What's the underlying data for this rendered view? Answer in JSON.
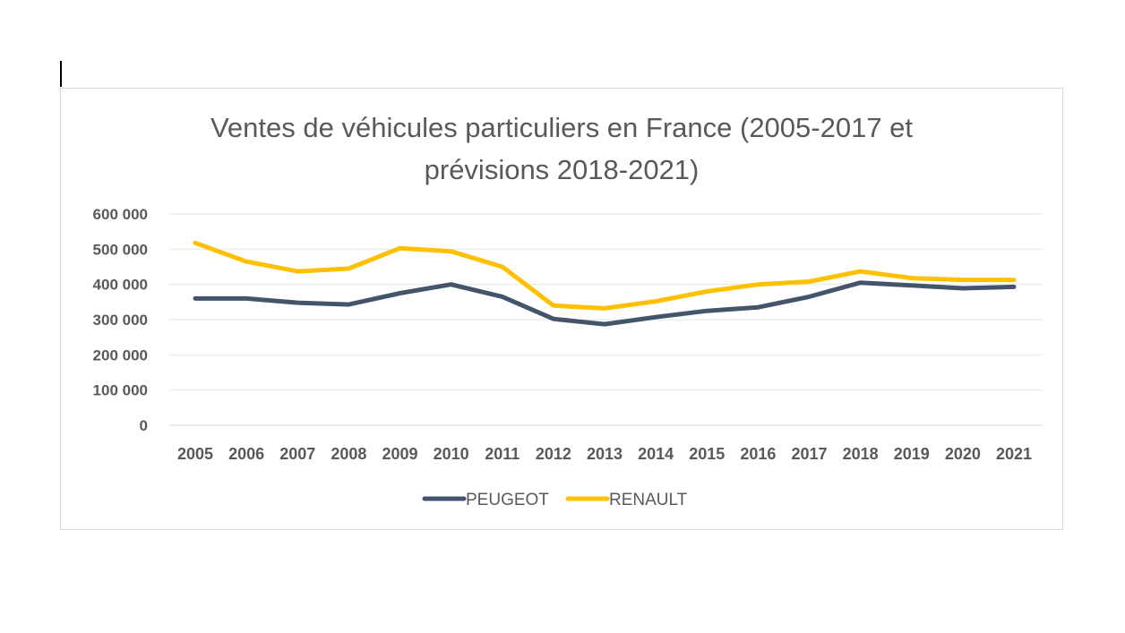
{
  "chart_data": {
    "type": "line",
    "title_line1": "Ventes de véhicules particuliers en France (2005-2017 et",
    "title_line2": "prévisions 2018-2021)",
    "categories": [
      "2005",
      "2006",
      "2007",
      "2008",
      "2009",
      "2010",
      "2011",
      "2012",
      "2013",
      "2014",
      "2015",
      "2016",
      "2017",
      "2018",
      "2019",
      "2020",
      "2021"
    ],
    "y_tick_labels": [
      "0",
      "100 000",
      "200 000",
      "300 000",
      "400 000",
      "500 000",
      "600 000"
    ],
    "ylim": [
      0,
      600000
    ],
    "grid": true,
    "legend_position": "bottom",
    "series": [
      {
        "name": "PEUGEOT",
        "color": "#44546a",
        "values": [
          360000,
          360000,
          348000,
          343000,
          375000,
          400000,
          365000,
          302000,
          287000,
          307000,
          325000,
          335000,
          365000,
          405000,
          397000,
          389000,
          393000
        ]
      },
      {
        "name": "RENAULT",
        "color": "#ffc000",
        "values": [
          518000,
          465000,
          437000,
          445000,
          503000,
          494000,
          450000,
          340000,
          332000,
          352000,
          380000,
          400000,
          408000,
          437000,
          418000,
          413000,
          413000
        ]
      }
    ]
  }
}
